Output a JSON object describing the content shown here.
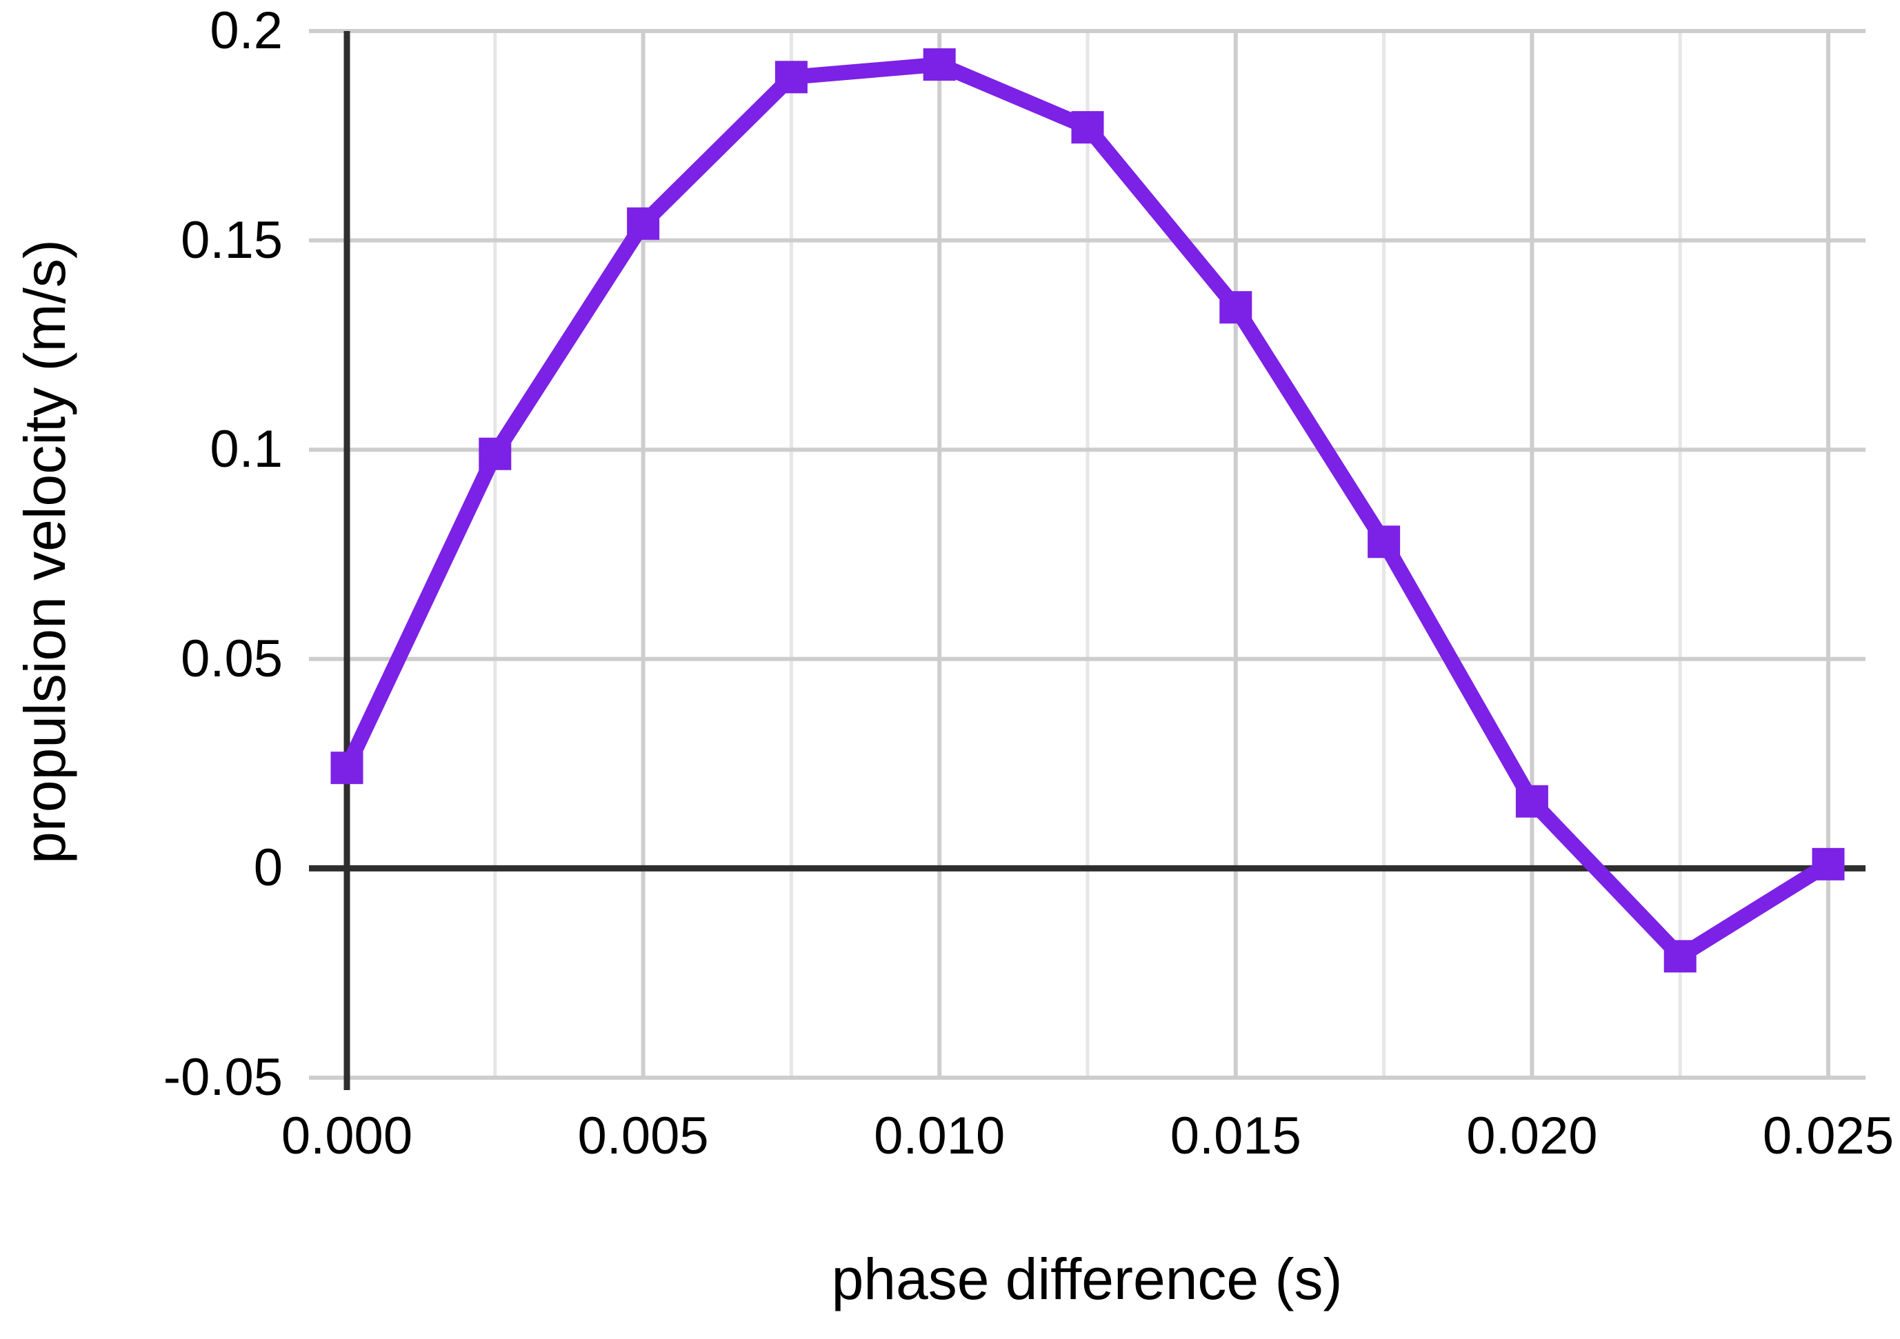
{
  "chart_data": {
    "type": "line",
    "title": "",
    "xlabel": "phase difference (s)",
    "ylabel": "propulsion velocity (m/s)",
    "xlim": [
      0,
      0.025
    ],
    "ylim": [
      -0.05,
      0.2
    ],
    "grid": true,
    "legend_position": "none",
    "series": [
      {
        "name": "propulsion velocity",
        "marker": "square",
        "x": [
          0.0,
          0.0025,
          0.005,
          0.0075,
          0.01,
          0.0125,
          0.015,
          0.0175,
          0.02,
          0.0225,
          0.025
        ],
        "y": [
          0.024,
          0.099,
          0.154,
          0.189,
          0.192,
          0.177,
          0.134,
          0.078,
          0.016,
          -0.021,
          0.001
        ]
      }
    ],
    "x_major_ticks": {
      "values": [
        0,
        0.005,
        0.01,
        0.015,
        0.02,
        0.025
      ],
      "labels": [
        "0.000",
        "0.005",
        "0.010",
        "0.015",
        "0.020",
        "0.025"
      ]
    },
    "x_minor_ticks": [
      0.0025,
      0.0075,
      0.0125,
      0.0175,
      0.0225
    ],
    "y_ticks": {
      "values": [
        0.2,
        0.15,
        0.1,
        0.05,
        0,
        -0.05
      ],
      "labels": [
        "0.2",
        "0.15",
        "0.1",
        "0.05",
        "0",
        "-0.05"
      ]
    },
    "colors": {
      "series": "#7C21E6",
      "grid_major": "#cdcdcd",
      "grid_minor": "#e6e6e6",
      "axis_zero": "#2e2e2e",
      "text": "#000000",
      "background": "#ffffff"
    },
    "style": {
      "line_width": 22,
      "marker_size": 47,
      "grid_major_width": 6,
      "grid_minor_width": 5,
      "axis_zero_width": 9
    }
  }
}
